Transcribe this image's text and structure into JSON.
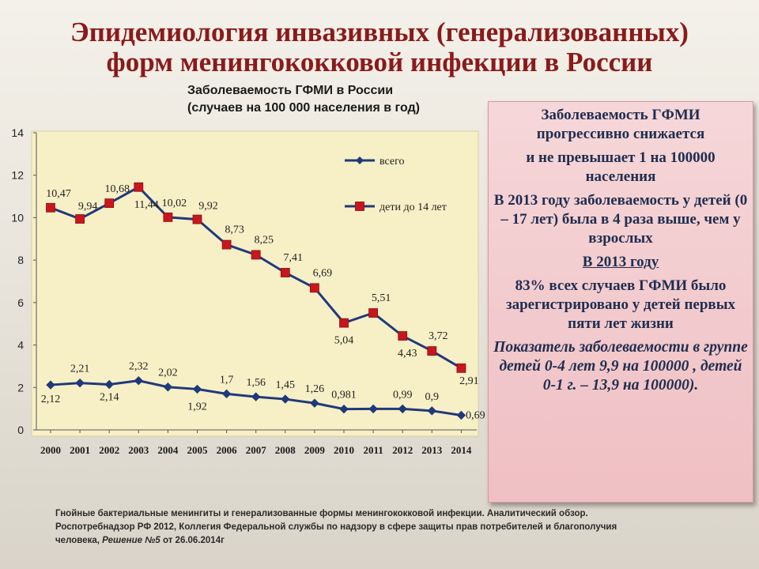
{
  "title": {
    "line1": "Эпидемиология инвазивных (генерализованных)",
    "line2": "форм менингококковой инфекции в России"
  },
  "chart_heading": {
    "line1": "Заболеваемость ГФМИ в России",
    "line2": "(случаев на 100 000 населения в год)"
  },
  "chart_data": {
    "type": "line",
    "x": [
      "2000",
      "2001",
      "2002",
      "2003",
      "2004",
      "2005",
      "2006",
      "2007",
      "2008",
      "2009",
      "2010",
      "2011",
      "2012",
      "2013",
      "2014"
    ],
    "ylim": [
      0,
      14
    ],
    "yticks": [
      "0",
      "2",
      "4",
      "6",
      "8",
      "10",
      "12",
      "14"
    ],
    "grid": false,
    "legend_position": "top-right",
    "series": [
      {
        "name": "всего",
        "color": "#1f3a7a",
        "marker": "diamond",
        "values": [
          2.12,
          2.21,
          2.14,
          2.32,
          2.02,
          1.92,
          1.7,
          1.56,
          1.45,
          1.26,
          0.981,
          0.99,
          0.99,
          0.9,
          0.69
        ],
        "labels": [
          "2,12",
          "2,21",
          "2,14",
          "2,32",
          "2,02",
          "1,92",
          "1,7",
          "1,56",
          "1,45",
          "1,26",
          "0,981",
          "",
          "0,99",
          "0,9",
          "0,69"
        ]
      },
      {
        "name": "дети до 14 лет",
        "color": "#1f3a7a",
        "marker": "square",
        "marker_color": "#c8161d",
        "values": [
          10.47,
          9.94,
          10.68,
          11.44,
          10.02,
          9.92,
          8.73,
          8.25,
          7.41,
          6.69,
          5.04,
          5.51,
          4.43,
          3.72,
          2.91
        ],
        "labels": [
          "10,47",
          "9,94",
          "10,68",
          "11,44",
          "10,02",
          "9,92",
          "8,73",
          "8,25",
          "7,41",
          "6,69",
          "5,04",
          "5,51",
          "4,43",
          "3,72",
          "2,91"
        ]
      }
    ]
  },
  "info_box": {
    "p1": "Заболеваемость ГФМИ прогрессивно снижается",
    "p2": "и не превышает 1 на 100000 населения",
    "p3": "В 2013 году заболеваемость у детей (0 – 17 лет) была в 4 раза выше, чем у взрослых",
    "p4": "В 2013 году",
    "p5": "83% всех случаев ГФМИ было зарегистрировано у детей первых пяти лет жизни",
    "p6": "Показатель заболеваемости в группе детей 0-4 лет 9,9 на 100000 , детей 0-1 г. – 13,9 на 100000)."
  },
  "footnote": {
    "line1": "Гнойные бактериальные менингиты и генерализованные формы менингококковой инфекции. Аналитический обзор.",
    "line2": "Роспотребнадзор РФ 2012, Коллегия Федеральной службы по надзору в сфере защиты прав потребителей и благополучия",
    "line3_start": "человека, ",
    "line3_italic": "Решение №5",
    "line3_end": " от 26.06.2014г"
  }
}
